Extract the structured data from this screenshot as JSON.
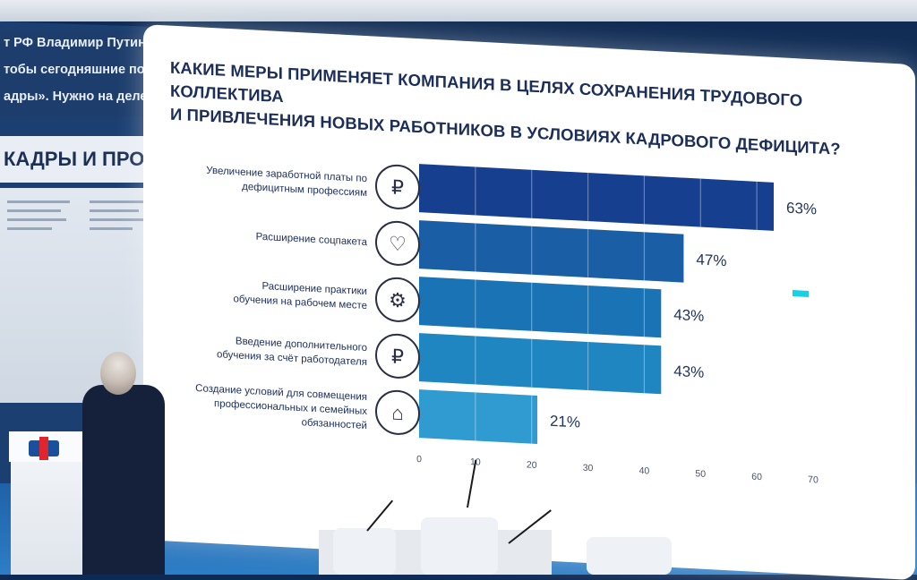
{
  "background": {
    "ticker_lines": [
      "т РФ Владимир Путин в п",
      "тобы сегодняшние подро",
      "адры». Нужно на деле ук"
    ],
    "banner": "КАДРЫ И ПРОИЗВОД"
  },
  "slide": {
    "title_line1": "КАКИЕ МЕРЫ ПРИМЕНЯЕТ КОМПАНИЯ В ЦЕЛЯХ СОХРАНЕНИЯ ТРУДОВОГО КОЛЛЕКТИВА",
    "title_line2": "И ПРИВЛЕЧЕНИЯ НОВЫХ РАБОТНИКОВ В УСЛОВИЯХ КАДРОВОГО ДЕФИЦИТА?"
  },
  "chart_data": {
    "type": "bar",
    "orientation": "horizontal",
    "title": "КАКИЕ МЕРЫ ПРИМЕНЯЕТ КОМПАНИЯ В ЦЕЛЯХ СОХРАНЕНИЯ ТРУДОВОГО КОЛЛЕКТИВА И ПРИВЛЕЧЕНИЯ НОВЫХ РАБОТНИКОВ В УСЛОВИЯХ КАДРОВОГО ДЕФИЦИТА?",
    "categories": [
      [
        "Увеличение заработной платы по",
        "дефицитным профессиям"
      ],
      [
        "Расширение соцпакета"
      ],
      [
        "Расширение практики",
        "обучения на рабочем месте"
      ],
      [
        "Введение дополнительного",
        "обучения за счёт работодателя"
      ],
      [
        "Создание условий для совмещения",
        "профессиональных и семейных",
        "обязанностей"
      ]
    ],
    "values": [
      63,
      47,
      43,
      43,
      21
    ],
    "value_labels": [
      "63%",
      "47%",
      "43%",
      "43%",
      "21%"
    ],
    "bar_colors": [
      "#173f8f",
      "#1a5fa6",
      "#1a73b4",
      "#1f86c2",
      "#2f9bd0"
    ],
    "icons": [
      "wallet-ruble-icon",
      "hand-heart-icon",
      "graduation-cap-gear-icon",
      "graduation-cap-coins-icon",
      "house-gear-icon"
    ],
    "xlim": [
      0,
      70
    ],
    "xticks": [
      0,
      10,
      20,
      30,
      40,
      50,
      60,
      70
    ],
    "grid": "vertical",
    "xlabel": "",
    "ylabel": ""
  }
}
